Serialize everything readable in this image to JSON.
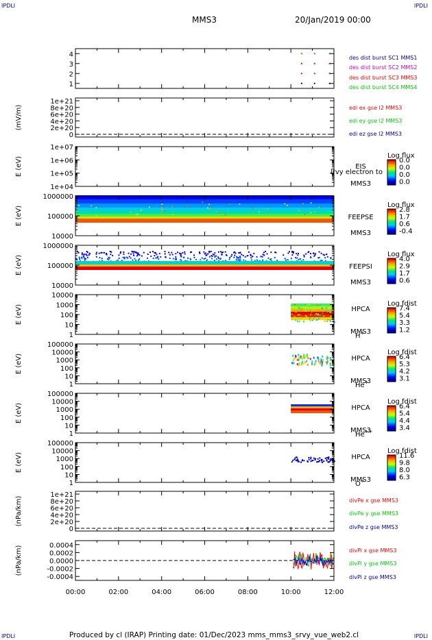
{
  "corner_label": "IPDLI",
  "header": {
    "spacecraft": "MMS3",
    "datetime": "20/Jan/2019 00:00"
  },
  "footer": {
    "text": "Produced by cl (IRAP)   Printing date: 01/Dec/2023   mms_mms3_srvy_vue_web2.cl"
  },
  "xaxis": {
    "ticks": [
      "00:00",
      "02:00",
      "04:00",
      "06:00",
      "08:00",
      "10:00",
      "12:00"
    ],
    "range_hours": [
      0,
      12
    ]
  },
  "colors": {
    "red": "#ff0000",
    "green": "#00cc00",
    "blue": "#0000ff",
    "magenta": "#cc00cc",
    "dark_blue": "#0000aa"
  },
  "chart_data": [
    {
      "type": "scatter",
      "id": "des_burst",
      "yticks": [
        "1",
        "2",
        "3",
        "4"
      ],
      "ylim": [
        0.5,
        4.5
      ],
      "legend": [
        {
          "text": "des dist burst SC1 MMS1",
          "color": "#0000aa"
        },
        {
          "text": "des dist burst SC2 MMS2",
          "color": "#cc00cc"
        },
        {
          "text": "des dist burst SC3 MMS3",
          "color": "#ff0000"
        },
        {
          "text": "des dist burst SC4 MMS4",
          "color": "#00cc00"
        }
      ],
      "series": [
        {
          "y": 1,
          "color": "#0000aa",
          "x": [
            10.5,
            11.1,
            11.8
          ]
        },
        {
          "y": 2,
          "color": "#cc00cc",
          "x": [
            10.5,
            11.1,
            11.8
          ]
        },
        {
          "y": 3,
          "color": "#ff0000",
          "x": [
            10.5,
            11.1,
            11.8
          ]
        },
        {
          "y": 4,
          "color": "#00cc00",
          "x": [
            10.5,
            11.1,
            11.8
          ]
        }
      ]
    },
    {
      "type": "line",
      "id": "edi",
      "ylabel": "(mV/m)",
      "yticks": [
        "0",
        "2e+20",
        "4e+20",
        "6e+20",
        "8e+20",
        "1e+21"
      ],
      "ylim": [
        0,
        1e+21
      ],
      "legend": [
        {
          "text": "edi ex gse l2 MMS3",
          "color": "#ff0000"
        },
        {
          "text": "edi ey gse l2 MMS3",
          "color": "#00cc00"
        },
        {
          "text": "edi ez gse l2 MMS3",
          "color": "#0000aa"
        }
      ]
    },
    {
      "type": "heatmap",
      "id": "eis",
      "ylabel": "E (eV)",
      "yticks": [
        "1e+04",
        "1e+05",
        "1e+06",
        "1e+07"
      ],
      "labels": [
        "EIS",
        "MMS3"
      ],
      "overlay_text": "lrvy electron to",
      "cbar_title": "Log flux",
      "cbar_ticks": [
        "0.0",
        "0.0",
        "0.0",
        "0.0"
      ]
    },
    {
      "type": "heatmap",
      "id": "feepse",
      "ylabel": "E (eV)",
      "yticks": [
        "10000",
        "100000",
        "1000000"
      ],
      "labels": [
        "FEEPSE",
        "MMS3"
      ],
      "cbar_title": "Log flux",
      "cbar_ticks": [
        "2.8",
        "1.7",
        "0.6",
        "-0.4"
      ]
    },
    {
      "type": "heatmap",
      "id": "feepsi",
      "ylabel": "E (eV)",
      "yticks": [
        "10000",
        "100000",
        "1000000"
      ],
      "labels": [
        "FEEPSI",
        "MMS3"
      ],
      "cbar_title": "Log flux",
      "cbar_ticks": [
        "4.0",
        "2.9",
        "1.7",
        "0.6"
      ]
    },
    {
      "type": "heatmap",
      "id": "hpca_h",
      "ylabel": "E (eV)",
      "yticks": [
        "1",
        "10",
        "100",
        "1000",
        "10000"
      ],
      "labels": [
        "HPCA",
        "MMS3"
      ],
      "species": "H",
      "species_sup": "+",
      "cbar_title": "Log fdist",
      "cbar_ticks": [
        "7.4",
        "5.4",
        "3.3",
        "1.2"
      ]
    },
    {
      "type": "heatmap",
      "id": "hpca_he",
      "ylabel": "E (eV)",
      "yticks": [
        "1",
        "10",
        "100",
        "1000",
        "10000",
        "100000"
      ],
      "labels": [
        "HPCA",
        "MMS3"
      ],
      "species": "He",
      "species_sup": "+",
      "cbar_title": "Log fdist",
      "cbar_ticks": [
        "6.4",
        "5.3",
        "4.2",
        "3.1"
      ]
    },
    {
      "type": "heatmap",
      "id": "hpca_hepp",
      "ylabel": "E (eV)",
      "yticks": [
        "1",
        "10",
        "100",
        "1000",
        "10000",
        "100000"
      ],
      "labels": [
        "HPCA",
        "MMS3"
      ],
      "species": "He",
      "species_sup": "++",
      "cbar_title": "Log fdist",
      "cbar_ticks": [
        "6.4",
        "5.4",
        "4.4",
        "3.4"
      ]
    },
    {
      "type": "heatmap",
      "id": "hpca_o",
      "ylabel": "E (eV)",
      "yticks": [
        "1",
        "10",
        "100",
        "1000",
        "10000",
        "100000"
      ],
      "labels": [
        "HPCA",
        "MMS3"
      ],
      "species": "O",
      "species_sup": "+",
      "cbar_title": "Log fdist",
      "cbar_ticks": [
        "11.6",
        "9.8",
        "8.0",
        "6.3"
      ]
    },
    {
      "type": "line",
      "id": "divpe",
      "ylabel": "(nPa/km)",
      "yticks": [
        "0",
        "2e+20",
        "4e+20",
        "6e+20",
        "8e+20",
        "1e+21"
      ],
      "ylim": [
        0,
        1e+21
      ],
      "legend": [
        {
          "text": "divPe x gse MMS3",
          "color": "#ff0000"
        },
        {
          "text": "divPe y gse MMS3",
          "color": "#00cc00"
        },
        {
          "text": "divPe z gse MMS3",
          "color": "#0000aa"
        }
      ]
    },
    {
      "type": "line",
      "id": "divpi",
      "ylabel": "(nPa/km)",
      "yticks": [
        "-0.0004",
        "-0.0002",
        "0.0000",
        "0.0002",
        "0.0004"
      ],
      "ylim": [
        -0.0005,
        0.0005
      ],
      "legend": [
        {
          "text": "divPi x gse MMS3",
          "color": "#ff0000"
        },
        {
          "text": "divPi y gse MMS3",
          "color": "#00cc00"
        },
        {
          "text": "divPi z gse MMS3",
          "color": "#0000aa"
        }
      ]
    }
  ]
}
